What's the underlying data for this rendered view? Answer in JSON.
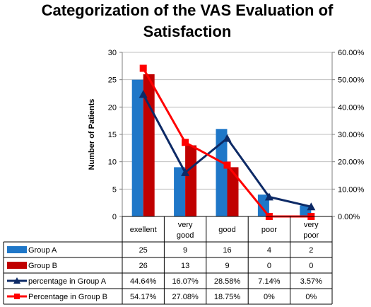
{
  "chart_data": {
    "type": "bar",
    "title": "Categorization of the VAS Evaluation of Satisfaction",
    "title_lines": [
      "Categorization of the VAS Evaluation of",
      "Satisfaction"
    ],
    "categories": [
      "exellent",
      "very good",
      "good",
      "poor",
      "very poor"
    ],
    "category_lines": [
      [
        "exellent"
      ],
      [
        "very",
        "good"
      ],
      [
        "good"
      ],
      [
        "poor"
      ],
      [
        "very",
        "poor"
      ]
    ],
    "ylabel": "Number of Patients",
    "ylim": [
      0,
      30
    ],
    "yticks": [
      0,
      5,
      10,
      15,
      20,
      25,
      30
    ],
    "y2lim": [
      0,
      60
    ],
    "y2ticks": [
      "0.00%",
      "10.00%",
      "20.00%",
      "30.00%",
      "40.00%",
      "50.00%",
      "60.00%"
    ],
    "grid": true,
    "legend": "data table below chart",
    "series": [
      {
        "name": "Group A",
        "type": "bar",
        "axis": "left",
        "color": "#1F77C8",
        "values": [
          25,
          9,
          16,
          4,
          2
        ],
        "labels": [
          "25",
          "9",
          "16",
          "4",
          "2"
        ]
      },
      {
        "name": "Group B",
        "type": "bar",
        "axis": "left",
        "color": "#C00000",
        "values": [
          26,
          13,
          9,
          0,
          0
        ],
        "labels": [
          "26",
          "13",
          "9",
          "0",
          "0"
        ]
      },
      {
        "name": "percentage in Group A",
        "type": "line",
        "axis": "right",
        "color": "#0D2A66",
        "marker": "triangle",
        "values": [
          44.64,
          16.07,
          28.58,
          7.14,
          3.57
        ],
        "labels": [
          "44.64%",
          "16.07%",
          "28.58%",
          "7.14%",
          "3.57%"
        ]
      },
      {
        "name": "Percentage in Group B",
        "type": "line",
        "axis": "right",
        "color": "#FF0000",
        "marker": "square",
        "values": [
          54.17,
          27.08,
          18.75,
          0,
          0
        ],
        "labels": [
          "54.17%",
          "27.08%",
          "18.75%",
          "0%",
          "0%"
        ]
      }
    ]
  }
}
